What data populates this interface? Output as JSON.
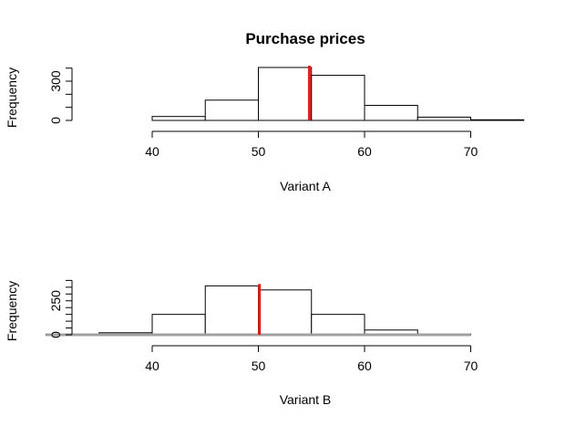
{
  "chart_data": [
    {
      "type": "bar",
      "title": "Purchase prices",
      "xlabel": "Variant A",
      "ylabel": "Frequency",
      "xlim": [
        30,
        75
      ],
      "ylim": [
        0,
        450
      ],
      "x_ticks": [
        40,
        50,
        60,
        70
      ],
      "y_tick_labels": [
        0,
        300
      ],
      "y_minor_ticks": [
        0,
        100,
        200,
        300,
        400
      ],
      "bins": [
        {
          "start": 40,
          "end": 45,
          "count": 30
        },
        {
          "start": 45,
          "end": 50,
          "count": 155
        },
        {
          "start": 50,
          "end": 55,
          "count": 405
        },
        {
          "start": 55,
          "end": 60,
          "count": 345
        },
        {
          "start": 60,
          "end": 65,
          "count": 115
        },
        {
          "start": 65,
          "end": 70,
          "count": 25
        },
        {
          "start": 70,
          "end": 75,
          "count": 5
        }
      ],
      "mean_line": {
        "x": 54.8,
        "color": "#e41a1c"
      }
    },
    {
      "type": "bar",
      "title": "",
      "xlabel": "Variant B",
      "ylabel": "Frequency",
      "xlim": [
        30,
        75
      ],
      "ylim": [
        0,
        450
      ],
      "x_ticks": [
        40,
        50,
        60,
        70
      ],
      "y_tick_labels": [
        0,
        250
      ],
      "y_minor_ticks": [
        0,
        50,
        100,
        150,
        200,
        250,
        300,
        350,
        400
      ],
      "bins": [
        {
          "start": 30,
          "end": 35,
          "count": 2
        },
        {
          "start": 35,
          "end": 40,
          "count": 15
        },
        {
          "start": 40,
          "end": 45,
          "count": 150
        },
        {
          "start": 45,
          "end": 50,
          "count": 360
        },
        {
          "start": 50,
          "end": 55,
          "count": 330
        },
        {
          "start": 55,
          "end": 60,
          "count": 150
        },
        {
          "start": 60,
          "end": 65,
          "count": 35
        },
        {
          "start": 65,
          "end": 70,
          "count": 5
        }
      ],
      "mean_line": {
        "x": 50.1,
        "color": "#e41a1c"
      },
      "baseline_color": "#a0a0a0"
    }
  ]
}
